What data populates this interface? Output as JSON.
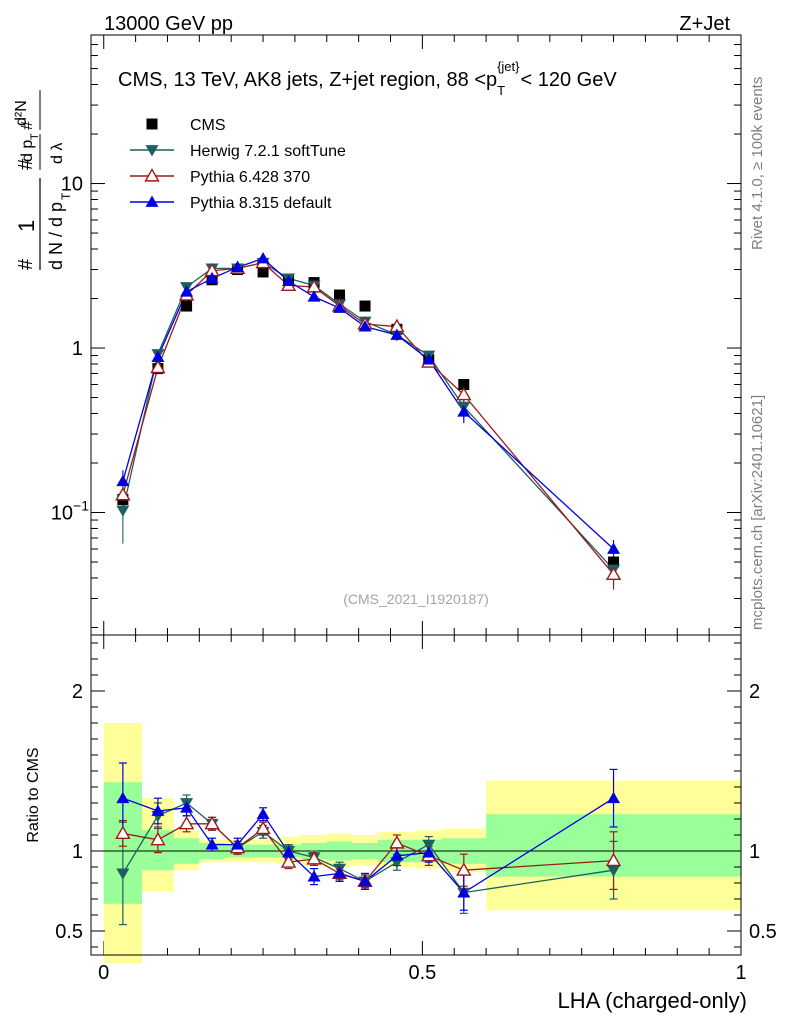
{
  "header": {
    "energy": "13000 GeV pp",
    "process": "Z+Jet"
  },
  "side": {
    "rivet": "Rivet 4.1.0, ≥ 100k events",
    "mcplots": "mcplots.cern.ch [arXiv:2401.10621]"
  },
  "chart_data": {
    "type": "scatter",
    "title": "CMS, 13 TeV, AK8 jets, Z+jet region, 88 <p",
    "title_sub": "T",
    "title_sup": "{jet}",
    "title_tail": "< 120 GeV",
    "reference": "(CMS_2021_I1920187)",
    "ylabel_main": "1/dN/dp_T d^2N/dp_T dlambda",
    "ylabel_ratio": "Ratio to CMS",
    "xlabel": "LHA (charged-only)",
    "xlim": [
      -0.02,
      1.0
    ],
    "main_yscale": "log",
    "main_ylim": [
      0.018,
      80
    ],
    "ratio_ylim": [
      0.35,
      2.35
    ],
    "x_ticks": [
      "0",
      "0.5",
      "1"
    ],
    "x_tick_values": [
      0,
      0.5,
      1
    ],
    "main_y_ticks": [
      "10",
      "1",
      "10"
    ],
    "main_y_tick_exp": [
      "",
      "",
      "−1"
    ],
    "main_y_tick_values": [
      10,
      1,
      0.1
    ],
    "ratio_y_ticks": [
      "2",
      "1",
      "0.5"
    ],
    "ratio_y_tick_values": [
      2,
      1,
      0.5
    ],
    "legend_position": "top-left",
    "bins": [
      [
        0.0,
        0.06
      ],
      [
        0.06,
        0.11
      ],
      [
        0.11,
        0.15
      ],
      [
        0.15,
        0.19
      ],
      [
        0.19,
        0.23
      ],
      [
        0.23,
        0.27
      ],
      [
        0.27,
        0.31
      ],
      [
        0.31,
        0.35
      ],
      [
        0.35,
        0.39
      ],
      [
        0.39,
        0.43
      ],
      [
        0.43,
        0.49
      ],
      [
        0.49,
        0.53
      ],
      [
        0.53,
        0.6
      ],
      [
        0.6,
        1.0
      ]
    ],
    "band_inner": [
      [
        0.67,
        1.43
      ],
      [
        0.88,
        1.13
      ],
      [
        0.92,
        1.08
      ],
      [
        0.95,
        1.05
      ],
      [
        0.96,
        1.04
      ],
      [
        0.96,
        1.04
      ],
      [
        0.96,
        1.04
      ],
      [
        0.95,
        1.05
      ],
      [
        0.94,
        1.06
      ],
      [
        0.95,
        1.05
      ],
      [
        0.93,
        1.07
      ],
      [
        0.93,
        1.07
      ],
      [
        0.92,
        1.08
      ],
      [
        0.84,
        1.23
      ]
    ],
    "band_outer": [
      [
        0.3,
        1.8
      ],
      [
        0.75,
        1.33
      ],
      [
        0.88,
        1.13
      ],
      [
        0.93,
        1.07
      ],
      [
        0.93,
        1.07
      ],
      [
        0.93,
        1.07
      ],
      [
        0.92,
        1.09
      ],
      [
        0.91,
        1.1
      ],
      [
        0.9,
        1.11
      ],
      [
        0.91,
        1.1
      ],
      [
        0.9,
        1.12
      ],
      [
        0.89,
        1.13
      ],
      [
        0.87,
        1.14
      ],
      [
        0.63,
        1.44
      ]
    ],
    "series": [
      {
        "name": "CMS",
        "marker": "square",
        "color": "#000000",
        "x": [
          0.03,
          0.085,
          0.13,
          0.17,
          0.21,
          0.25,
          0.29,
          0.33,
          0.37,
          0.41,
          0.46,
          0.51,
          0.565,
          0.8
        ],
        "y": [
          0.12,
          0.75,
          1.8,
          2.6,
          3.0,
          2.9,
          2.6,
          2.5,
          2.1,
          1.8,
          1.3,
          0.85,
          0.6,
          0.05
        ],
        "ratio": [
          1,
          1,
          1,
          1,
          1,
          1,
          1,
          1,
          1,
          1,
          1,
          1,
          1,
          1
        ],
        "ratio_err": [
          0,
          0,
          0,
          0,
          0,
          0,
          0,
          0,
          0,
          0,
          0,
          0,
          0,
          0
        ]
      },
      {
        "name": "Herwig 7.2.1 softTune",
        "marker": "triangle-down",
        "color": "#1f5f5f",
        "x": [
          0.03,
          0.085,
          0.13,
          0.17,
          0.21,
          0.25,
          0.29,
          0.33,
          0.37,
          0.41,
          0.46,
          0.51,
          0.565,
          0.8
        ],
        "y": [
          0.103,
          0.92,
          2.35,
          3.05,
          3.05,
          3.3,
          2.65,
          2.4,
          1.85,
          1.45,
          1.2,
          0.9,
          0.44,
          0.045
        ],
        "ratio": [
          0.86,
          1.22,
          1.3,
          1.17,
          1.02,
          1.12,
          1.0,
          0.96,
          0.89,
          0.81,
          0.93,
          1.04,
          0.74,
          0.88
        ],
        "ratio_err": [
          0.32,
          0.08,
          0.05,
          0.04,
          0.04,
          0.04,
          0.04,
          0.04,
          0.04,
          0.04,
          0.05,
          0.05,
          0.13,
          0.18
        ]
      },
      {
        "name": "Pythia 6.428 370",
        "marker": "triangle-up-open",
        "color": "#9b1b1b",
        "x": [
          0.03,
          0.085,
          0.13,
          0.17,
          0.21,
          0.25,
          0.29,
          0.33,
          0.37,
          0.41,
          0.46,
          0.51,
          0.565,
          0.8
        ],
        "y": [
          0.128,
          0.76,
          2.1,
          2.95,
          3.05,
          3.3,
          2.4,
          2.35,
          1.8,
          1.4,
          1.35,
          0.82,
          0.52,
          0.042
        ],
        "ratio": [
          1.11,
          1.07,
          1.17,
          1.17,
          1.02,
          1.14,
          0.93,
          0.95,
          0.86,
          0.81,
          1.05,
          0.97,
          0.88,
          0.94
        ],
        "ratio_err": [
          0.08,
          0.08,
          0.05,
          0.04,
          0.04,
          0.04,
          0.04,
          0.04,
          0.04,
          0.04,
          0.05,
          0.06,
          0.1,
          0.18
        ]
      },
      {
        "name": "Pythia 8.315 default",
        "marker": "triangle-up",
        "color": "#0000e0",
        "x": [
          0.03,
          0.085,
          0.13,
          0.17,
          0.21,
          0.25,
          0.29,
          0.33,
          0.37,
          0.41,
          0.46,
          0.51,
          0.565,
          0.8
        ],
        "y": [
          0.155,
          0.88,
          2.2,
          2.65,
          3.1,
          3.5,
          2.55,
          2.05,
          1.75,
          1.35,
          1.2,
          0.85,
          0.41,
          0.06
        ],
        "ratio": [
          1.33,
          1.25,
          1.27,
          1.04,
          1.04,
          1.23,
          0.99,
          0.84,
          0.86,
          0.81,
          0.97,
          0.99,
          0.74,
          1.33
        ],
        "ratio_err": [
          0.22,
          0.08,
          0.05,
          0.04,
          0.04,
          0.04,
          0.04,
          0.05,
          0.05,
          0.05,
          0.06,
          0.06,
          0.11,
          0.18
        ]
      }
    ]
  }
}
